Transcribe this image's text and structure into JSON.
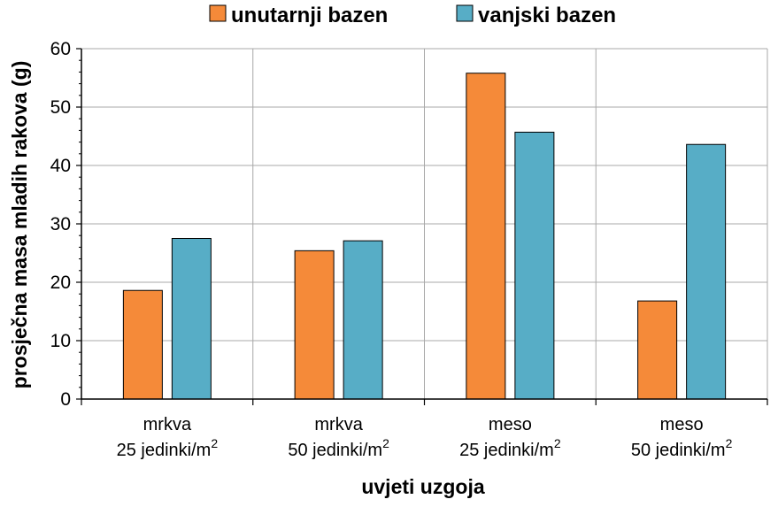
{
  "chart_data": {
    "type": "bar",
    "title": "",
    "xlabel": "uvjeti uzgoja",
    "ylabel": "prosječna masa mladih rakova (g)",
    "ylim": [
      0,
      60
    ],
    "yticks": [
      0,
      10,
      20,
      30,
      40,
      50,
      60
    ],
    "grid": true,
    "legend_position": "top",
    "categories": [
      {
        "line1": "mrkva",
        "line2_base": "25 jedinki/m",
        "line2_sup": "2"
      },
      {
        "line1": "mrkva",
        "line2_base": "50 jedinki/m",
        "line2_sup": "2"
      },
      {
        "line1": "meso",
        "line2_base": "25 jedinki/m",
        "line2_sup": "2"
      },
      {
        "line1": "meso",
        "line2_base": "50 jedinki/m",
        "line2_sup": "2"
      }
    ],
    "series": [
      {
        "name": "unutarnji bazen",
        "color": "#f58a39",
        "values": [
          18.6,
          25.4,
          55.8,
          16.8
        ]
      },
      {
        "name": "vanjski bazen",
        "color": "#57adc6",
        "values": [
          27.5,
          27.1,
          45.7,
          43.6
        ]
      }
    ]
  }
}
